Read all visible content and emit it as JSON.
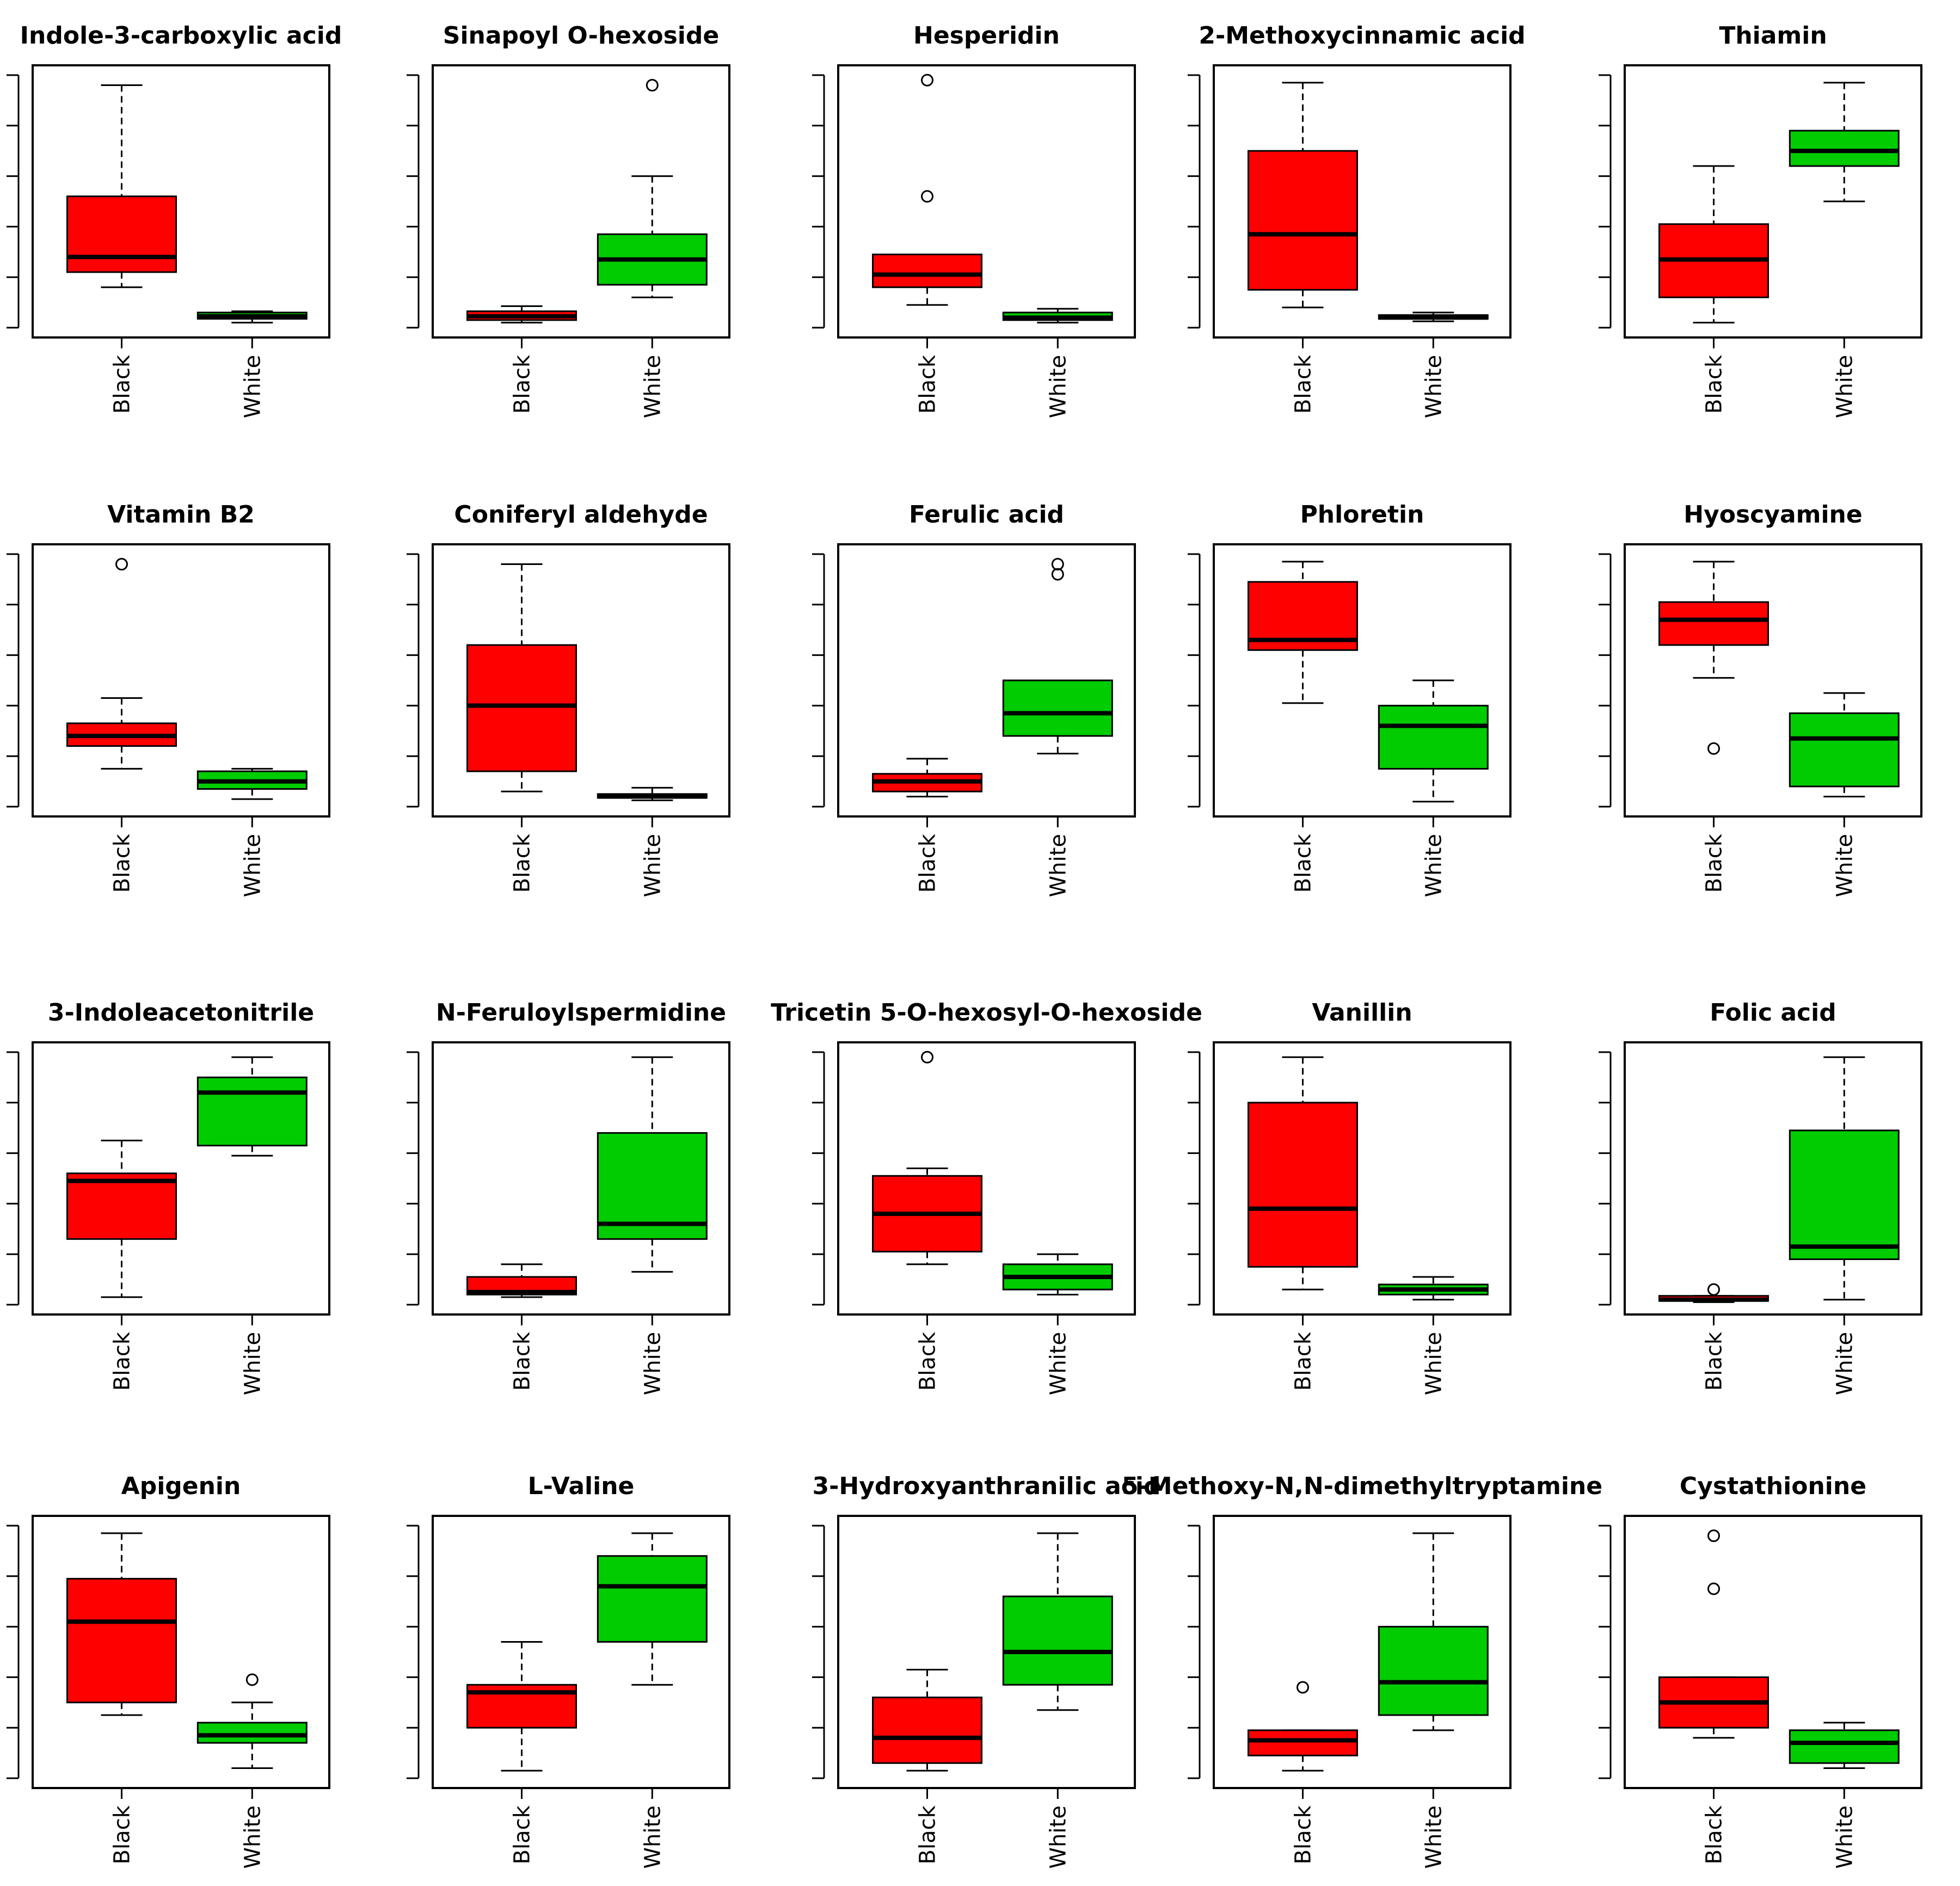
{
  "colors": {
    "Black": "#ff0000",
    "White": "#00cc00",
    "frame": "#000000"
  },
  "chart_data": [
    {
      "type": "boxplot",
      "title": "Indole-3-carboxylic acid",
      "categories": [
        "Black",
        "White"
      ],
      "ylim": [
        0,
        100
      ],
      "boxes": [
        {
          "min": 16,
          "q1": 22,
          "median": 28,
          "q3": 52,
          "max": 96,
          "outliers": []
        },
        {
          "min": 2,
          "q1": 3.5,
          "median": 4.5,
          "q3": 6,
          "max": 6.5,
          "outliers": []
        }
      ]
    },
    {
      "type": "boxplot",
      "title": "Sinapoyl O-hexoside",
      "categories": [
        "Black",
        "White"
      ],
      "ylim": [
        0,
        100
      ],
      "boxes": [
        {
          "min": 2,
          "q1": 3,
          "median": 4.5,
          "q3": 6.5,
          "max": 8.5,
          "outliers": []
        },
        {
          "min": 12,
          "q1": 17,
          "median": 27,
          "q3": 37,
          "max": 60,
          "outliers": [
            96
          ]
        }
      ]
    },
    {
      "type": "boxplot",
      "title": "Hesperidin",
      "categories": [
        "Black",
        "White"
      ],
      "ylim": [
        0,
        100
      ],
      "boxes": [
        {
          "min": 9,
          "q1": 16,
          "median": 21,
          "q3": 29,
          "max": 29,
          "outliers": [
            52,
            98
          ]
        },
        {
          "min": 2,
          "q1": 3,
          "median": 4,
          "q3": 6,
          "max": 7.5,
          "outliers": []
        }
      ]
    },
    {
      "type": "boxplot",
      "title": "2-Methoxycinnamic acid",
      "categories": [
        "Black",
        "White"
      ],
      "ylim": [
        0,
        100
      ],
      "boxes": [
        {
          "min": 8,
          "q1": 15,
          "median": 37,
          "q3": 70,
          "max": 97,
          "outliers": []
        },
        {
          "min": 2.5,
          "q1": 3.5,
          "median": 4,
          "q3": 5,
          "max": 6,
          "outliers": []
        }
      ]
    },
    {
      "type": "boxplot",
      "title": "Thiamin",
      "categories": [
        "Black",
        "White"
      ],
      "ylim": [
        0,
        100
      ],
      "boxes": [
        {
          "min": 2,
          "q1": 12,
          "median": 27,
          "q3": 41,
          "max": 64,
          "outliers": []
        },
        {
          "min": 50,
          "q1": 64,
          "median": 70,
          "q3": 78,
          "max": 97,
          "outliers": []
        }
      ]
    },
    {
      "type": "boxplot",
      "title": "Vitamin B2",
      "categories": [
        "Black",
        "White"
      ],
      "ylim": [
        0,
        100
      ],
      "boxes": [
        {
          "min": 15,
          "q1": 24,
          "median": 28,
          "q3": 33,
          "max": 43,
          "outliers": [
            96
          ]
        },
        {
          "min": 3,
          "q1": 7,
          "median": 10,
          "q3": 14,
          "max": 15,
          "outliers": []
        }
      ]
    },
    {
      "type": "boxplot",
      "title": "Coniferyl aldehyde",
      "categories": [
        "Black",
        "White"
      ],
      "ylim": [
        0,
        100
      ],
      "boxes": [
        {
          "min": 6,
          "q1": 14,
          "median": 40,
          "q3": 64,
          "max": 96,
          "outliers": []
        },
        {
          "min": 2.5,
          "q1": 3.5,
          "median": 4,
          "q3": 5,
          "max": 7.5,
          "outliers": []
        }
      ]
    },
    {
      "type": "boxplot",
      "title": "Ferulic acid",
      "categories": [
        "Black",
        "White"
      ],
      "ylim": [
        0,
        100
      ],
      "boxes": [
        {
          "min": 4,
          "q1": 6,
          "median": 10,
          "q3": 13,
          "max": 19,
          "outliers": []
        },
        {
          "min": 21,
          "q1": 28,
          "median": 37,
          "q3": 50,
          "max": 50,
          "outliers": [
            92,
            96
          ]
        }
      ]
    },
    {
      "type": "boxplot",
      "title": "Phloretin",
      "categories": [
        "Black",
        "White"
      ],
      "ylim": [
        0,
        100
      ],
      "boxes": [
        {
          "min": 41,
          "q1": 62,
          "median": 66,
          "q3": 89,
          "max": 97,
          "outliers": []
        },
        {
          "min": 2,
          "q1": 15,
          "median": 32,
          "q3": 40,
          "max": 50,
          "outliers": []
        }
      ]
    },
    {
      "type": "boxplot",
      "title": "Hyoscyamine",
      "categories": [
        "Black",
        "White"
      ],
      "ylim": [
        0,
        100
      ],
      "boxes": [
        {
          "min": 51,
          "q1": 64,
          "median": 74,
          "q3": 81,
          "max": 97,
          "outliers": [
            23
          ]
        },
        {
          "min": 4,
          "q1": 8,
          "median": 27,
          "q3": 37,
          "max": 45,
          "outliers": []
        }
      ]
    },
    {
      "type": "boxplot",
      "title": "3-Indoleacetonitrile",
      "categories": [
        "Black",
        "White"
      ],
      "ylim": [
        0,
        100
      ],
      "boxes": [
        {
          "min": 3,
          "q1": 26,
          "median": 49,
          "q3": 52,
          "max": 65,
          "outliers": []
        },
        {
          "min": 59,
          "q1": 63,
          "median": 84,
          "q3": 90,
          "max": 98,
          "outliers": []
        }
      ]
    },
    {
      "type": "boxplot",
      "title": "N-Feruloylspermidine",
      "categories": [
        "Black",
        "White"
      ],
      "ylim": [
        0,
        100
      ],
      "boxes": [
        {
          "min": 3,
          "q1": 4,
          "median": 5,
          "q3": 11,
          "max": 16,
          "outliers": []
        },
        {
          "min": 13,
          "q1": 26,
          "median": 32,
          "q3": 68,
          "max": 98,
          "outliers": []
        }
      ]
    },
    {
      "type": "boxplot",
      "title": "Tricetin 5-O-hexosyl-O-hexoside",
      "categories": [
        "Black",
        "White"
      ],
      "ylim": [
        0,
        100
      ],
      "boxes": [
        {
          "min": 16,
          "q1": 21,
          "median": 36,
          "q3": 51,
          "max": 54,
          "outliers": [
            98
          ]
        },
        {
          "min": 4,
          "q1": 6,
          "median": 11,
          "q3": 16,
          "max": 20,
          "outliers": []
        }
      ]
    },
    {
      "type": "boxplot",
      "title": "Vanillin",
      "categories": [
        "Black",
        "White"
      ],
      "ylim": [
        0,
        100
      ],
      "boxes": [
        {
          "min": 6,
          "q1": 15,
          "median": 38,
          "q3": 80,
          "max": 98,
          "outliers": []
        },
        {
          "min": 2,
          "q1": 4,
          "median": 6,
          "q3": 8,
          "max": 11,
          "outliers": []
        }
      ]
    },
    {
      "type": "boxplot",
      "title": "Folic acid",
      "categories": [
        "Black",
        "White"
      ],
      "ylim": [
        0,
        100
      ],
      "boxes": [
        {
          "min": 1,
          "q1": 1.5,
          "median": 2,
          "q3": 3.5,
          "max": 3.5,
          "outliers": [
            6
          ]
        },
        {
          "min": 2,
          "q1": 18,
          "median": 23,
          "q3": 69,
          "max": 98,
          "outliers": []
        }
      ]
    },
    {
      "type": "boxplot",
      "title": "Apigenin",
      "categories": [
        "Black",
        "White"
      ],
      "ylim": [
        0,
        100
      ],
      "boxes": [
        {
          "min": 25,
          "q1": 30,
          "median": 62,
          "q3": 79,
          "max": 97,
          "outliers": []
        },
        {
          "min": 4,
          "q1": 14,
          "median": 17,
          "q3": 22,
          "max": 30,
          "outliers": [
            39
          ]
        }
      ]
    },
    {
      "type": "boxplot",
      "title": "L-Valine",
      "categories": [
        "Black",
        "White"
      ],
      "ylim": [
        0,
        100
      ],
      "boxes": [
        {
          "min": 3,
          "q1": 20,
          "median": 34,
          "q3": 37,
          "max": 54,
          "outliers": []
        },
        {
          "min": 37,
          "q1": 54,
          "median": 76,
          "q3": 88,
          "max": 97,
          "outliers": []
        }
      ]
    },
    {
      "type": "boxplot",
      "title": "3-Hydroxyanthranilic acid",
      "categories": [
        "Black",
        "White"
      ],
      "ylim": [
        0,
        100
      ],
      "boxes": [
        {
          "min": 3,
          "q1": 6,
          "median": 16,
          "q3": 32,
          "max": 43,
          "outliers": []
        },
        {
          "min": 27,
          "q1": 37,
          "median": 50,
          "q3": 72,
          "max": 97,
          "outliers": []
        }
      ]
    },
    {
      "type": "boxplot",
      "title": "5-Methoxy-N,N-dimethyltryptamine",
      "categories": [
        "Black",
        "White"
      ],
      "ylim": [
        0,
        100
      ],
      "boxes": [
        {
          "min": 3,
          "q1": 9,
          "median": 15,
          "q3": 19,
          "max": 19,
          "outliers": [
            36
          ]
        },
        {
          "min": 19,
          "q1": 25,
          "median": 38,
          "q3": 60,
          "max": 97,
          "outliers": []
        }
      ]
    },
    {
      "type": "boxplot",
      "title": "Cystathionine",
      "categories": [
        "Black",
        "White"
      ],
      "ylim": [
        0,
        100
      ],
      "boxes": [
        {
          "min": 16,
          "q1": 20,
          "median": 30,
          "q3": 40,
          "max": 40,
          "outliers": [
            75,
            96
          ]
        },
        {
          "min": 4,
          "q1": 6,
          "median": 14,
          "q3": 19,
          "max": 22,
          "outliers": []
        }
      ]
    }
  ]
}
